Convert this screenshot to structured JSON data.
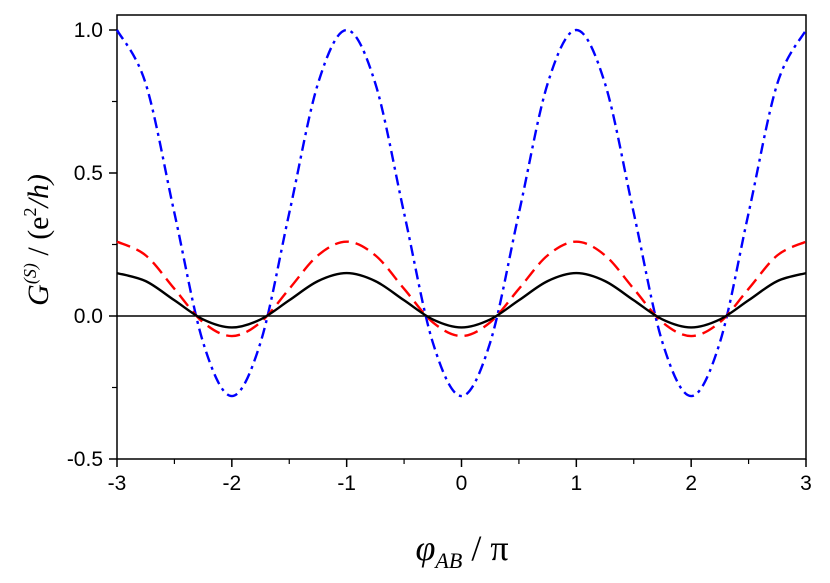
{
  "chart_data": {
    "type": "line",
    "xlabel": {
      "main": "φ",
      "sub": "AB",
      "rest": " / π"
    },
    "ylabel": {
      "main": "G",
      "sup": "(S)",
      "rest1": " / (e",
      "sup2": "2",
      "rest2": "/h)"
    },
    "xlim": [
      -3,
      3
    ],
    "ylim": [
      -0.5,
      1.05
    ],
    "xticks": [
      -3,
      -2,
      -1,
      0,
      1,
      2,
      3
    ],
    "xtick_labels": [
      "-3",
      "-2",
      "-1",
      "0",
      "1",
      "2",
      "3"
    ],
    "yticks": [
      -0.5,
      0.0,
      0.5,
      1.0
    ],
    "ytick_labels": [
      "-0.5",
      "0.0",
      "0.5",
      "1.0"
    ],
    "grid": false,
    "reference_line_y": 0,
    "x": [
      -3,
      -2.75,
      -2.5,
      -2.25,
      -2,
      -1.75,
      -1.5,
      -1.25,
      -1,
      -0.75,
      -0.5,
      -0.25,
      0,
      0.25,
      0.5,
      0.75,
      1,
      1.25,
      1.5,
      1.75,
      2,
      2.25,
      2.5,
      2.75,
      3
    ],
    "series": [
      {
        "style": "dash-dot",
        "color": "#0000ff",
        "values": [
          1.0,
          0.8125,
          0.36,
          -0.0925,
          -0.28,
          -0.0925,
          0.36,
          0.8125,
          1.0,
          0.8125,
          0.36,
          -0.0925,
          -0.28,
          -0.0925,
          0.36,
          0.8125,
          1.0,
          0.8125,
          0.36,
          -0.0925,
          -0.28,
          -0.0925,
          0.36,
          0.8125,
          1.0
        ]
      },
      {
        "style": "dashed",
        "color": "#ff0000",
        "values": [
          0.26,
          0.212,
          0.095,
          -0.022,
          -0.07,
          -0.022,
          0.095,
          0.212,
          0.26,
          0.212,
          0.095,
          -0.022,
          -0.07,
          -0.022,
          0.095,
          0.212,
          0.26,
          0.212,
          0.095,
          -0.022,
          -0.07,
          -0.022,
          0.095,
          0.212,
          0.26
        ]
      },
      {
        "style": "solid",
        "color": "#000000",
        "values": [
          0.15,
          0.122,
          0.055,
          -0.012,
          -0.04,
          -0.012,
          0.055,
          0.122,
          0.15,
          0.122,
          0.055,
          -0.012,
          -0.04,
          -0.012,
          0.055,
          0.122,
          0.15,
          0.122,
          0.055,
          -0.012,
          -0.04,
          -0.012,
          0.055,
          0.122,
          0.15
        ]
      }
    ]
  }
}
